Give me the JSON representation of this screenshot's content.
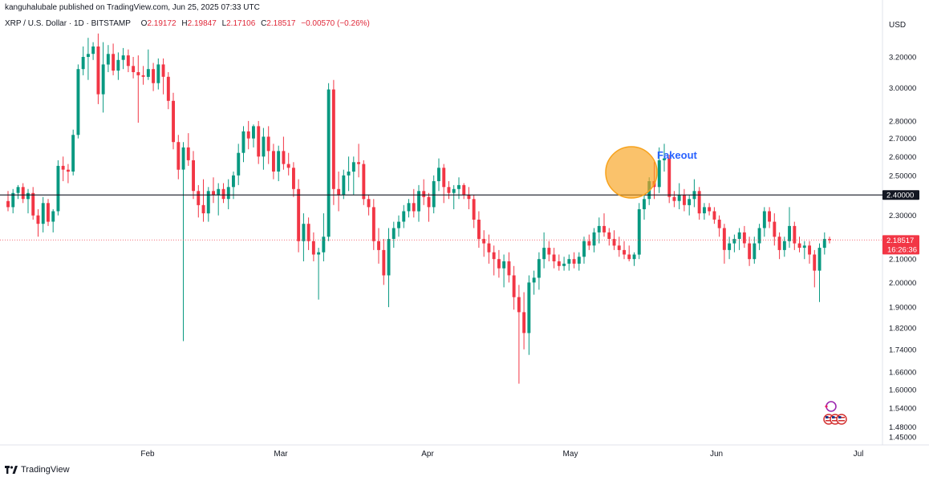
{
  "header": {
    "publisher_line": "kanguhalubale published on TradingView.com, Jun 25, 2025 07:33 UTC",
    "symbol": "XRP / U.S. Dollar · 1D · BITSTAMP",
    "open_label": "O",
    "open": "2.19172",
    "high_label": "H",
    "high": "2.19847",
    "low_label": "L",
    "low": "2.17106",
    "close_label": "C",
    "close": "2.18517",
    "change": "−0.00570 (−0.26%)"
  },
  "price_axis": {
    "currency": "USD"
  },
  "branding": {
    "name": "TradingView"
  },
  "colors": {
    "up": "#089981",
    "down": "#f23645",
    "line": "#131722",
    "circle": "#f7a21b",
    "annotation": "#2962ff"
  },
  "chart_data": {
    "type": "candlestick",
    "y_ticks": [
      "3.20000",
      "3.00000",
      "2.80000",
      "2.70000",
      "2.60000",
      "2.50000",
      "2.30000",
      "2.10000",
      "2.00000",
      "1.90000",
      "1.82000",
      "1.74000",
      "1.66000",
      "1.60000",
      "1.54000",
      "1.48000",
      "1.45000"
    ],
    "x_ticks": [
      "Feb",
      "Mar",
      "Apr",
      "May",
      "Jun",
      "Jul"
    ],
    "horizontal_line": {
      "value": 2.4,
      "label": "2.40000"
    },
    "current_price": {
      "value": 2.18517,
      "label": "2.18517",
      "countdown": "16:26:36"
    },
    "annotation": {
      "text": "Fakeout"
    },
    "candles": [
      [
        2.37,
        2.42,
        2.32,
        2.34
      ],
      [
        2.34,
        2.43,
        2.31,
        2.41
      ],
      [
        2.41,
        2.45,
        2.38,
        2.44
      ],
      [
        2.44,
        2.46,
        2.36,
        2.38
      ],
      [
        2.38,
        2.43,
        2.31,
        2.41
      ],
      [
        2.41,
        2.44,
        2.28,
        2.3
      ],
      [
        2.3,
        2.33,
        2.2,
        2.26
      ],
      [
        2.26,
        2.39,
        2.22,
        2.36
      ],
      [
        2.36,
        2.38,
        2.25,
        2.27
      ],
      [
        2.27,
        2.33,
        2.22,
        2.32
      ],
      [
        2.32,
        2.58,
        2.3,
        2.55
      ],
      [
        2.55,
        2.6,
        2.47,
        2.53
      ],
      [
        2.53,
        2.56,
        2.46,
        2.52
      ],
      [
        2.52,
        2.75,
        2.5,
        2.72
      ],
      [
        2.72,
        3.15,
        2.7,
        3.12
      ],
      [
        3.12,
        3.27,
        3.08,
        3.2
      ],
      [
        3.2,
        3.33,
        3.05,
        3.22
      ],
      [
        3.22,
        3.3,
        3.18,
        3.27
      ],
      [
        3.27,
        3.36,
        2.9,
        2.96
      ],
      [
        2.96,
        3.3,
        2.85,
        3.15
      ],
      [
        3.15,
        3.28,
        3.1,
        3.22
      ],
      [
        3.22,
        3.29,
        3.08,
        3.11
      ],
      [
        3.11,
        3.23,
        3.05,
        3.18
      ],
      [
        3.18,
        3.26,
        3.12,
        3.21
      ],
      [
        3.21,
        3.25,
        3.1,
        3.14
      ],
      [
        3.14,
        3.2,
        3.06,
        3.1
      ],
      [
        3.1,
        3.21,
        2.79,
        3.08
      ],
      [
        3.08,
        3.14,
        3.02,
        3.07
      ],
      [
        3.07,
        3.25,
        3.05,
        3.12
      ],
      [
        3.12,
        3.16,
        2.98,
        3.03
      ],
      [
        3.03,
        3.19,
        2.99,
        3.15
      ],
      [
        3.15,
        3.19,
        2.96,
        3.07
      ],
      [
        3.07,
        3.1,
        2.87,
        2.92
      ],
      [
        2.92,
        2.97,
        2.64,
        2.68
      ],
      [
        2.68,
        2.72,
        2.48,
        2.53
      ],
      [
        2.53,
        2.68,
        1.77,
        2.65
      ],
      [
        2.65,
        2.73,
        2.55,
        2.58
      ],
      [
        2.58,
        2.63,
        2.38,
        2.42
      ],
      [
        2.42,
        2.45,
        2.29,
        2.35
      ],
      [
        2.35,
        2.48,
        2.27,
        2.31
      ],
      [
        2.31,
        2.44,
        2.27,
        2.42
      ],
      [
        2.42,
        2.49,
        2.36,
        2.4
      ],
      [
        2.4,
        2.46,
        2.3,
        2.43
      ],
      [
        2.43,
        2.46,
        2.36,
        2.38
      ],
      [
        2.38,
        2.48,
        2.33,
        2.44
      ],
      [
        2.44,
        2.52,
        2.38,
        2.5
      ],
      [
        2.5,
        2.67,
        2.45,
        2.62
      ],
      [
        2.62,
        2.77,
        2.57,
        2.74
      ],
      [
        2.74,
        2.8,
        2.64,
        2.7
      ],
      [
        2.7,
        2.78,
        2.65,
        2.77
      ],
      [
        2.77,
        2.8,
        2.56,
        2.6
      ],
      [
        2.6,
        2.76,
        2.53,
        2.71
      ],
      [
        2.71,
        2.77,
        2.56,
        2.63
      ],
      [
        2.63,
        2.67,
        2.48,
        2.52
      ],
      [
        2.52,
        2.66,
        2.47,
        2.63
      ],
      [
        2.63,
        2.71,
        2.53,
        2.56
      ],
      [
        2.56,
        2.62,
        2.5,
        2.54
      ],
      [
        2.54,
        2.57,
        2.39,
        2.43
      ],
      [
        2.43,
        2.48,
        2.13,
        2.18
      ],
      [
        2.18,
        2.31,
        2.09,
        2.26
      ],
      [
        2.26,
        2.29,
        2.14,
        2.18
      ],
      [
        2.18,
        2.22,
        2.09,
        2.12
      ],
      [
        2.12,
        2.15,
        1.93,
        2.13
      ],
      [
        2.13,
        2.31,
        2.09,
        2.2
      ],
      [
        2.2,
        3.03,
        2.18,
        2.99
      ],
      [
        2.99,
        3.05,
        2.35,
        2.43
      ],
      [
        2.43,
        2.52,
        2.32,
        2.4
      ],
      [
        2.4,
        2.53,
        2.38,
        2.5
      ],
      [
        2.5,
        2.6,
        2.42,
        2.52
      ],
      [
        2.52,
        2.6,
        2.4,
        2.57
      ],
      [
        2.57,
        2.67,
        2.49,
        2.56
      ],
      [
        2.56,
        2.58,
        2.35,
        2.38
      ],
      [
        2.38,
        2.4,
        2.3,
        2.34
      ],
      [
        2.34,
        2.38,
        2.14,
        2.18
      ],
      [
        2.18,
        2.24,
        2.08,
        2.14
      ],
      [
        2.14,
        2.19,
        1.99,
        2.03
      ],
      [
        2.03,
        2.24,
        1.9,
        2.19
      ],
      [
        2.19,
        2.27,
        2.15,
        2.24
      ],
      [
        2.24,
        2.3,
        2.2,
        2.27
      ],
      [
        2.27,
        2.35,
        2.24,
        2.32
      ],
      [
        2.32,
        2.38,
        2.29,
        2.36
      ],
      [
        2.36,
        2.43,
        2.29,
        2.32
      ],
      [
        2.32,
        2.45,
        2.27,
        2.42
      ],
      [
        2.42,
        2.48,
        2.35,
        2.39
      ],
      [
        2.39,
        2.41,
        2.27,
        2.34
      ],
      [
        2.34,
        2.5,
        2.31,
        2.47
      ],
      [
        2.47,
        2.59,
        2.42,
        2.54
      ],
      [
        2.54,
        2.56,
        2.36,
        2.44
      ],
      [
        2.44,
        2.47,
        2.38,
        2.41
      ],
      [
        2.41,
        2.45,
        2.33,
        2.43
      ],
      [
        2.43,
        2.49,
        2.38,
        2.45
      ],
      [
        2.45,
        2.46,
        2.38,
        2.4
      ],
      [
        2.4,
        2.44,
        2.33,
        2.38
      ],
      [
        2.38,
        2.4,
        2.24,
        2.28
      ],
      [
        2.28,
        2.32,
        2.15,
        2.19
      ],
      [
        2.19,
        2.23,
        2.11,
        2.17
      ],
      [
        2.17,
        2.21,
        2.08,
        2.13
      ],
      [
        2.13,
        2.16,
        2.03,
        2.1
      ],
      [
        2.1,
        2.14,
        2.02,
        2.06
      ],
      [
        2.06,
        2.12,
        1.98,
        2.09
      ],
      [
        2.09,
        2.13,
        2.0,
        2.03
      ],
      [
        2.03,
        2.07,
        1.89,
        1.94
      ],
      [
        1.94,
        1.99,
        1.62,
        1.88
      ],
      [
        1.88,
        1.96,
        1.74,
        1.8
      ],
      [
        1.8,
        2.03,
        1.72,
        2.0
      ],
      [
        2.0,
        2.05,
        1.95,
        2.02
      ],
      [
        2.02,
        2.13,
        1.97,
        2.1
      ],
      [
        2.1,
        2.22,
        2.06,
        2.15
      ],
      [
        2.15,
        2.18,
        2.09,
        2.12
      ],
      [
        2.12,
        2.15,
        2.06,
        2.09
      ],
      [
        2.09,
        2.12,
        2.05,
        2.07
      ],
      [
        2.07,
        2.11,
        2.05,
        2.08
      ],
      [
        2.08,
        2.12,
        2.05,
        2.1
      ],
      [
        2.1,
        2.13,
        2.06,
        2.08
      ],
      [
        2.08,
        2.13,
        2.05,
        2.11
      ],
      [
        2.11,
        2.2,
        2.08,
        2.18
      ],
      [
        2.18,
        2.21,
        2.14,
        2.16
      ],
      [
        2.16,
        2.24,
        2.13,
        2.22
      ],
      [
        2.22,
        2.29,
        2.17,
        2.25
      ],
      [
        2.25,
        2.31,
        2.2,
        2.22
      ],
      [
        2.22,
        2.24,
        2.16,
        2.19
      ],
      [
        2.19,
        2.23,
        2.14,
        2.16
      ],
      [
        2.16,
        2.2,
        2.11,
        2.14
      ],
      [
        2.14,
        2.18,
        2.1,
        2.12
      ],
      [
        2.12,
        2.16,
        2.09,
        2.1
      ],
      [
        2.1,
        2.13,
        2.07,
        2.12
      ],
      [
        2.12,
        2.36,
        2.1,
        2.33
      ],
      [
        2.33,
        2.4,
        2.28,
        2.38
      ],
      [
        2.38,
        2.49,
        2.35,
        2.47
      ],
      [
        2.47,
        2.57,
        2.38,
        2.44
      ],
      [
        2.44,
        2.65,
        2.41,
        2.58
      ],
      [
        2.58,
        2.67,
        2.52,
        2.59
      ],
      [
        2.59,
        2.61,
        2.36,
        2.39
      ],
      [
        2.39,
        2.42,
        2.34,
        2.37
      ],
      [
        2.37,
        2.46,
        2.33,
        2.4
      ],
      [
        2.4,
        2.43,
        2.32,
        2.35
      ],
      [
        2.35,
        2.4,
        2.3,
        2.38
      ],
      [
        2.38,
        2.48,
        2.34,
        2.42
      ],
      [
        2.42,
        2.44,
        2.28,
        2.31
      ],
      [
        2.31,
        2.36,
        2.28,
        2.34
      ],
      [
        2.34,
        2.36,
        2.3,
        2.32
      ],
      [
        2.32,
        2.34,
        2.26,
        2.28
      ],
      [
        2.28,
        2.3,
        2.2,
        2.24
      ],
      [
        2.24,
        2.26,
        2.08,
        2.14
      ],
      [
        2.14,
        2.2,
        2.1,
        2.17
      ],
      [
        2.17,
        2.21,
        2.13,
        2.19
      ],
      [
        2.19,
        2.24,
        2.14,
        2.22
      ],
      [
        2.22,
        2.25,
        2.15,
        2.17
      ],
      [
        2.17,
        2.2,
        2.07,
        2.1
      ],
      [
        2.1,
        2.2,
        2.08,
        2.17
      ],
      [
        2.17,
        2.26,
        2.14,
        2.24
      ],
      [
        2.24,
        2.34,
        2.2,
        2.32
      ],
      [
        2.32,
        2.34,
        2.24,
        2.27
      ],
      [
        2.27,
        2.31,
        2.16,
        2.2
      ],
      [
        2.2,
        2.22,
        2.1,
        2.14
      ],
      [
        2.14,
        2.2,
        2.11,
        2.18
      ],
      [
        2.18,
        2.34,
        2.15,
        2.25
      ],
      [
        2.25,
        2.27,
        2.14,
        2.17
      ],
      [
        2.17,
        2.2,
        2.13,
        2.15
      ],
      [
        2.15,
        2.18,
        2.1,
        2.16
      ],
      [
        2.16,
        2.18,
        2.08,
        2.12
      ],
      [
        2.12,
        2.14,
        1.98,
        2.05
      ],
      [
        2.05,
        2.17,
        1.92,
        2.15
      ],
      [
        2.15,
        2.22,
        2.12,
        2.19
      ],
      [
        2.19,
        2.2,
        2.17,
        2.185
      ]
    ]
  }
}
